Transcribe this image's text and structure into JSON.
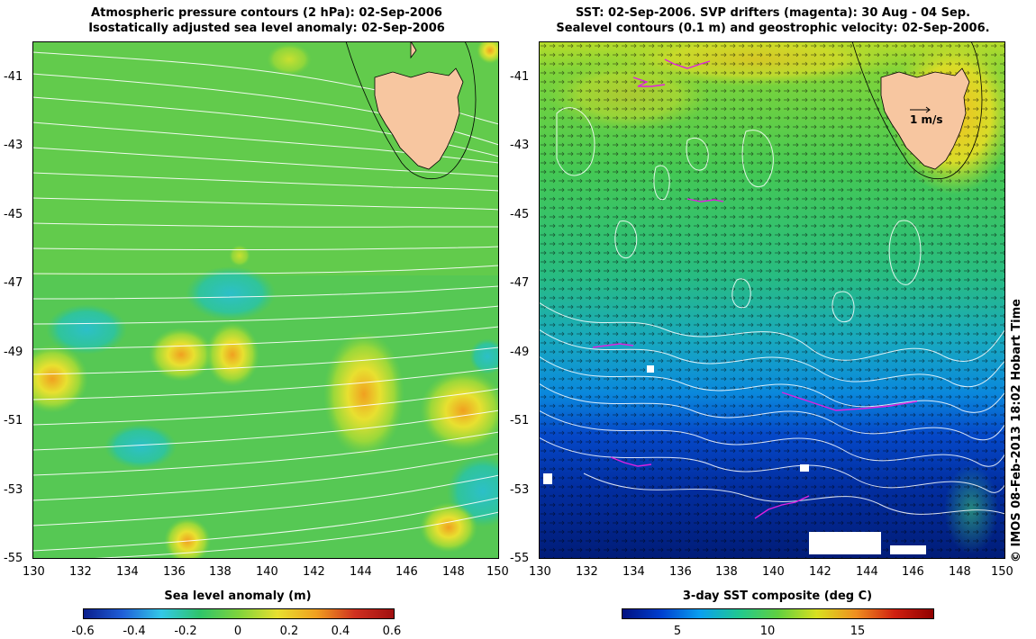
{
  "left_panel": {
    "title_line1": "Atmospheric pressure contours (2 hPa): 02-Sep-2006",
    "title_line2": "Isostatically adjusted sea level anomaly: 02-Sep-2006",
    "colorbar_label": "Sea level anomaly (m)",
    "colorbar_ticks": [
      "-0.6",
      "-0.4",
      "-0.2",
      "0",
      "0.2",
      "0.4",
      "0.6"
    ]
  },
  "right_panel": {
    "title_line1": "SST: 02-Sep-2006. SVP drifters (magenta): 30 Aug - 04 Sep.",
    "title_line2": "Sealevel contours (0.1 m) and geostrophic velocity: 02-Sep-2006.",
    "colorbar_label": "3-day SST composite (deg C)",
    "colorbar_ticks": [
      "5",
      "10",
      "15"
    ],
    "velocity_key": "1 m/s"
  },
  "axes": {
    "x_ticks": [
      "130",
      "132",
      "134",
      "136",
      "138",
      "140",
      "142",
      "144",
      "146",
      "148",
      "150"
    ],
    "y_ticks": [
      "-41",
      "-43",
      "-45",
      "-47",
      "-49",
      "-51",
      "-53",
      "-55"
    ]
  },
  "credit": "© IMOS 08-Feb-2013 18:02 Hobart Time",
  "colors": {
    "land": "#f7c6a0",
    "ssha_scale": [
      "#0a1e8c",
      "#1f7fe0",
      "#33c8e8",
      "#2fc46a",
      "#7fd43c",
      "#e8e030",
      "#f0a020",
      "#d03020",
      "#a01010"
    ],
    "sst_scale": [
      "#001080",
      "#0040d0",
      "#0aa0f0",
      "#20c890",
      "#60d040",
      "#d8e020",
      "#f09020",
      "#d02010",
      "#900000"
    ],
    "drifters": "#e020e0"
  }
}
